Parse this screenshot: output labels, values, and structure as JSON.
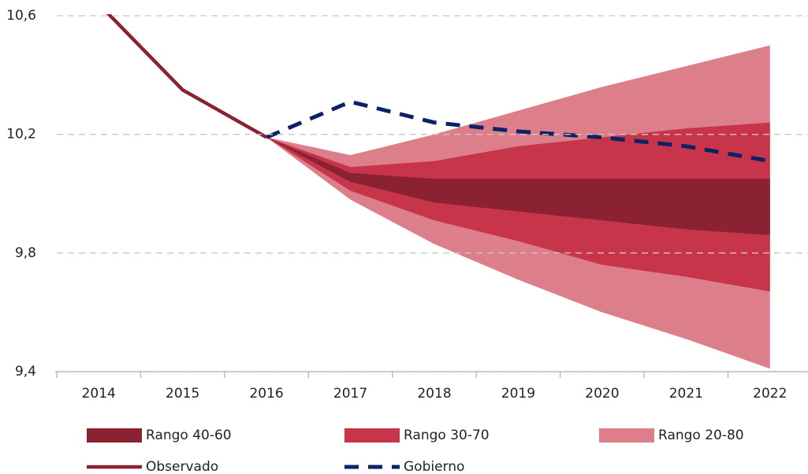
{
  "chart_data": {
    "type": "fan",
    "categories": [
      "2014",
      "2015",
      "2016",
      "2017",
      "2018",
      "2019",
      "2020",
      "2021",
      "2022"
    ],
    "ylim": [
      9.4,
      10.6
    ],
    "yticks": [
      {
        "value": 9.4,
        "label": "9,4"
      },
      {
        "value": 9.8,
        "label": "9,8"
      },
      {
        "value": 10.2,
        "label": "10,2"
      },
      {
        "value": 10.6,
        "label": "10,6"
      }
    ],
    "grid": true,
    "bands": [
      {
        "name": "Rango 20-80",
        "color": "#dc7f8a",
        "lower": [
          null,
          null,
          10.19,
          9.98,
          9.83,
          9.71,
          9.6,
          9.51,
          9.41
        ],
        "upper": [
          null,
          null,
          10.19,
          10.13,
          10.2,
          10.28,
          10.36,
          10.43,
          10.5
        ]
      },
      {
        "name": "Rango 30-70",
        "color": "#c8344a",
        "lower": [
          null,
          null,
          10.19,
          10.01,
          9.91,
          9.84,
          9.76,
          9.72,
          9.67
        ],
        "upper": [
          null,
          null,
          10.19,
          10.09,
          10.11,
          10.16,
          10.19,
          10.22,
          10.24
        ]
      },
      {
        "name": "Rango 40-60",
        "color": "#8b2232",
        "lower": [
          null,
          null,
          10.19,
          10.04,
          9.97,
          9.94,
          9.91,
          9.88,
          9.86
        ],
        "upper": [
          null,
          null,
          10.19,
          10.07,
          10.05,
          10.05,
          10.05,
          10.05,
          10.05
        ]
      }
    ],
    "series": [
      {
        "name": "Observado",
        "color": "#8b2232",
        "dashed": false,
        "values": [
          10.64,
          10.35,
          10.19,
          null,
          null,
          null,
          null,
          null,
          null
        ]
      },
      {
        "name": "Gobierno",
        "color": "#0b2366",
        "dashed": true,
        "values": [
          null,
          null,
          10.19,
          10.31,
          10.24,
          10.21,
          10.19,
          10.16,
          10.11
        ]
      }
    ]
  }
}
